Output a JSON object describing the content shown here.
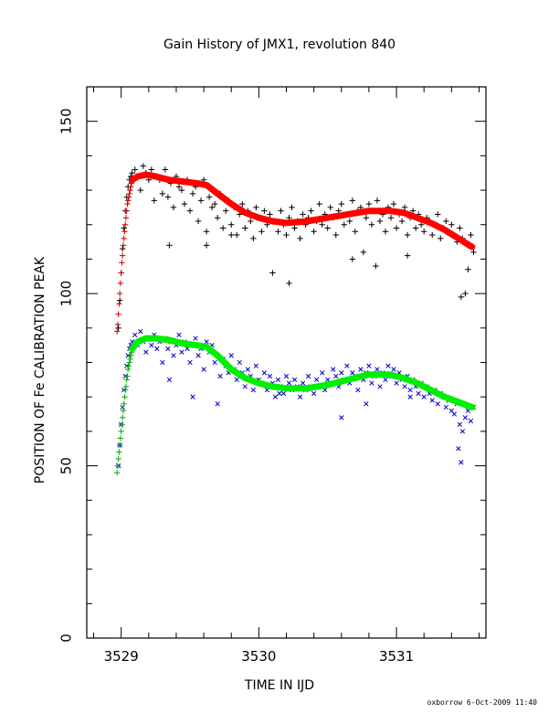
{
  "chart_data": {
    "type": "scatter",
    "title": "Gain History of JMX1, revolution 840",
    "xlabel": "TIME IN IJD",
    "ylabel": "POSITION OF Fe CALIBRATION PEAK",
    "xlim": [
      3528.75,
      3531.65
    ],
    "ylim": [
      0,
      160
    ],
    "xticks": [
      3529,
      3530,
      3531
    ],
    "yticks": [
      0,
      50,
      100,
      150
    ],
    "grid": false,
    "series": [
      {
        "marker": "+",
        "color": "#000000",
        "description_points": "upper scatter",
        "x": [
          3528.98,
          3528.99,
          3529.0,
          3529.01,
          3529.02,
          3529.03,
          3529.04,
          3529.05,
          3529.06,
          3529.07,
          3529.08,
          3529.1,
          3529.12,
          3529.14,
          3529.16,
          3529.18,
          3529.2,
          3529.22,
          3529.24,
          3529.26,
          3529.28,
          3529.3,
          3529.32,
          3529.34,
          3529.36,
          3529.38,
          3529.4,
          3529.42,
          3529.44,
          3529.46,
          3529.48,
          3529.5,
          3529.52,
          3529.54,
          3529.56,
          3529.58,
          3529.6,
          3529.62,
          3529.64,
          3529.66,
          3529.68,
          3529.7,
          3529.72,
          3529.74,
          3529.76,
          3529.78,
          3529.8,
          3529.82,
          3529.84,
          3529.86,
          3529.88,
          3529.9,
          3529.92,
          3529.94,
          3529.96,
          3529.98,
          3530.0,
          3530.02,
          3530.04,
          3530.06,
          3530.08,
          3530.1,
          3530.12,
          3530.14,
          3530.16,
          3530.18,
          3530.2,
          3530.22,
          3530.24,
          3530.26,
          3530.28,
          3530.3,
          3530.32,
          3530.34,
          3530.36,
          3530.38,
          3530.4,
          3530.42,
          3530.44,
          3530.46,
          3530.48,
          3530.5,
          3530.52,
          3530.54,
          3530.56,
          3530.58,
          3530.6,
          3530.62,
          3530.64,
          3530.66,
          3530.68,
          3530.7,
          3530.72,
          3530.74,
          3530.76,
          3530.78,
          3530.8,
          3530.82,
          3530.84,
          3530.86,
          3530.88,
          3530.9,
          3530.92,
          3530.94,
          3530.96,
          3530.98,
          3531.0,
          3531.02,
          3531.04,
          3531.06,
          3531.08,
          3531.1,
          3531.12,
          3531.14,
          3531.16,
          3531.18,
          3531.2,
          3531.22,
          3531.24,
          3531.26,
          3531.28,
          3531.3,
          3531.32,
          3531.34,
          3531.36,
          3531.38,
          3531.4,
          3531.42,
          3531.44,
          3531.46,
          3531.48,
          3531.5,
          3531.52,
          3531.54,
          3531.56
        ],
        "y": [
          90,
          98,
          106,
          113,
          119,
          124,
          128,
          131,
          133,
          134,
          135,
          136,
          134,
          130,
          137,
          135,
          133,
          136,
          127,
          134,
          133,
          129,
          136,
          128,
          132,
          125,
          134,
          131,
          130,
          126,
          133,
          124,
          129,
          131,
          121,
          127,
          133,
          118,
          128,
          125,
          126,
          122,
          129,
          119,
          124,
          127,
          120,
          125,
          117,
          123,
          126,
          119,
          124,
          121,
          116,
          125,
          122,
          118,
          124,
          120,
          123,
          106,
          121,
          118,
          124,
          120,
          117,
          122,
          125,
          119,
          121,
          116,
          123,
          120,
          122,
          124,
          118,
          121,
          126,
          120,
          123,
          119,
          125,
          122,
          117,
          124,
          126,
          120,
          123,
          121,
          127,
          118,
          124,
          125,
          112,
          122,
          126,
          120,
          124,
          127,
          121,
          123,
          118,
          125,
          122,
          126,
          119,
          123,
          121,
          125,
          117,
          122,
          124,
          119,
          123,
          120,
          118,
          122,
          121,
          117,
          120,
          123,
          116,
          119,
          121,
          118,
          120,
          117,
          115,
          119,
          116,
          100,
          114,
          117,
          112
        ],
        "extra_x": [
          3529.35,
          3529.62,
          3529.8,
          3530.22,
          3530.68,
          3530.85,
          3531.08,
          3531.47,
          3531.52
        ],
        "extra_y": [
          114,
          114,
          117,
          103,
          110,
          108,
          111,
          99,
          107
        ]
      },
      {
        "marker": "x",
        "color": "#0000cc",
        "description_points": "lower scatter",
        "x": [
          3528.98,
          3528.99,
          3529.0,
          3529.01,
          3529.02,
          3529.03,
          3529.04,
          3529.05,
          3529.06,
          3529.07,
          3529.08,
          3529.1,
          3529.12,
          3529.14,
          3529.16,
          3529.18,
          3529.2,
          3529.22,
          3529.24,
          3529.26,
          3529.28,
          3529.3,
          3529.32,
          3529.34,
          3529.36,
          3529.38,
          3529.4,
          3529.42,
          3529.44,
          3529.46,
          3529.48,
          3529.5,
          3529.52,
          3529.54,
          3529.56,
          3529.58,
          3529.6,
          3529.62,
          3529.64,
          3529.66,
          3529.68,
          3529.7,
          3529.72,
          3529.74,
          3529.76,
          3529.78,
          3529.8,
          3529.82,
          3529.84,
          3529.86,
          3529.88,
          3529.9,
          3529.92,
          3529.94,
          3529.96,
          3529.98,
          3530.0,
          3530.02,
          3530.04,
          3530.06,
          3530.08,
          3530.1,
          3530.12,
          3530.14,
          3530.16,
          3530.18,
          3530.2,
          3530.22,
          3530.24,
          3530.26,
          3530.28,
          3530.3,
          3530.32,
          3530.34,
          3530.36,
          3530.38,
          3530.4,
          3530.42,
          3530.44,
          3530.46,
          3530.48,
          3530.5,
          3530.52,
          3530.54,
          3530.56,
          3530.58,
          3530.6,
          3530.62,
          3530.64,
          3530.66,
          3530.68,
          3530.7,
          3530.72,
          3530.74,
          3530.76,
          3530.78,
          3530.8,
          3530.82,
          3530.84,
          3530.86,
          3530.88,
          3530.9,
          3530.92,
          3530.94,
          3530.96,
          3530.98,
          3531.0,
          3531.02,
          3531.04,
          3531.06,
          3531.08,
          3531.1,
          3531.12,
          3531.14,
          3531.16,
          3531.18,
          3531.2,
          3531.22,
          3531.24,
          3531.26,
          3531.28,
          3531.3,
          3531.32,
          3531.34,
          3531.36,
          3531.38,
          3531.4,
          3531.42,
          3531.44,
          3531.46,
          3531.48,
          3531.5,
          3531.52,
          3531.54,
          3531.56
        ],
        "y": [
          50,
          56,
          62,
          67,
          72,
          76,
          79,
          82,
          84,
          85,
          86,
          88,
          85,
          89,
          86,
          83,
          87,
          85,
          88,
          84,
          86,
          80,
          87,
          84,
          86,
          82,
          85,
          88,
          83,
          86,
          84,
          80,
          85,
          87,
          82,
          84,
          78,
          86,
          83,
          85,
          80,
          82,
          76,
          81,
          79,
          77,
          82,
          78,
          75,
          80,
          77,
          73,
          78,
          76,
          72,
          79,
          75,
          74,
          77,
          72,
          76,
          74,
          70,
          75,
          73,
          71,
          76,
          74,
          72,
          75,
          73,
          70,
          74,
          72,
          76,
          73,
          71,
          75,
          73,
          77,
          72,
          75,
          74,
          78,
          76,
          73,
          77,
          75,
          79,
          74,
          77,
          76,
          72,
          78,
          75,
          77,
          79,
          74,
          76,
          78,
          73,
          77,
          75,
          79,
          76,
          78,
          74,
          77,
          75,
          73,
          76,
          72,
          75,
          73,
          71,
          74,
          70,
          73,
          71,
          69,
          72,
          68,
          71,
          70,
          67,
          69,
          66,
          65,
          68,
          62,
          60,
          64,
          66,
          63,
          67
        ],
        "extra_x": [
          3529.35,
          3529.52,
          3529.7,
          3530.15,
          3530.6,
          3530.78,
          3531.1,
          3531.45,
          3531.47
        ],
        "extra_y": [
          75,
          70,
          68,
          71,
          64,
          68,
          70,
          55,
          51
        ]
      },
      {
        "marker": "+",
        "color": "#cc0000",
        "description_points": "upper fit start",
        "x": [
          3528.97,
          3528.975,
          3528.98,
          3528.985,
          3528.99,
          3528.995,
          3529.0,
          3529.005,
          3529.01,
          3529.015,
          3529.02,
          3529.025,
          3529.03,
          3529.035,
          3529.04,
          3529.045,
          3529.05,
          3529.055,
          3529.06,
          3529.065,
          3529.07,
          3529.075,
          3529.08
        ],
        "y": [
          89,
          91,
          94,
          97,
          100,
          103,
          106,
          109,
          111,
          114,
          116,
          118,
          120,
          122,
          124,
          126,
          127,
          128,
          129,
          130,
          131,
          132,
          133
        ]
      },
      {
        "marker": "+",
        "color": "#00aa00",
        "description_points": "lower fit start",
        "x": [
          3528.97,
          3528.975,
          3528.98,
          3528.985,
          3528.99,
          3528.995,
          3529.0,
          3529.005,
          3529.01,
          3529.015,
          3529.02,
          3529.025,
          3529.03,
          3529.035,
          3529.04,
          3529.045,
          3529.05,
          3529.055,
          3529.06,
          3529.065,
          3529.07,
          3529.075,
          3529.08
        ],
        "y": [
          48,
          50,
          52,
          54,
          56,
          58,
          60,
          62,
          64,
          66,
          68,
          70,
          72,
          73,
          75,
          76,
          78,
          79,
          80,
          81,
          82,
          83,
          84
        ]
      },
      {
        "type": "line",
        "color": "#ff0000",
        "width": "thick",
        "x": [
          3529.08,
          3529.12,
          3529.18,
          3529.25,
          3529.35,
          3529.45,
          3529.55,
          3529.62,
          3529.7,
          3529.8,
          3529.9,
          3530.0,
          3530.1,
          3530.2,
          3530.35,
          3530.5,
          3530.65,
          3530.8,
          3530.95,
          3531.05,
          3531.15,
          3531.25,
          3531.35,
          3531.45,
          3531.55
        ],
        "y": [
          133,
          134,
          134.5,
          134,
          133,
          132.5,
          132,
          131.5,
          129,
          126,
          123.5,
          122,
          121,
          120.5,
          121,
          122,
          123,
          124,
          124,
          123.5,
          122,
          120.5,
          118.5,
          116,
          113.5
        ]
      },
      {
        "type": "line",
        "color": "#00ee00",
        "width": "thick",
        "x": [
          3529.08,
          3529.12,
          3529.18,
          3529.25,
          3529.35,
          3529.45,
          3529.55,
          3529.62,
          3529.7,
          3529.8,
          3529.9,
          3530.0,
          3530.1,
          3530.2,
          3530.35,
          3530.5,
          3530.65,
          3530.8,
          3530.95,
          3531.05,
          3531.15,
          3531.25,
          3531.35,
          3531.45,
          3531.55
        ],
        "y": [
          84,
          86,
          87,
          87,
          86.5,
          85.5,
          85,
          84.5,
          82,
          78,
          75.5,
          74,
          73,
          72.5,
          72.5,
          73.5,
          75,
          76.5,
          76.5,
          75.5,
          74,
          72,
          70,
          68.5,
          67
        ]
      }
    ]
  },
  "footer": {
    "credit": "oxborrow   6-Oct-2009 11:40"
  }
}
